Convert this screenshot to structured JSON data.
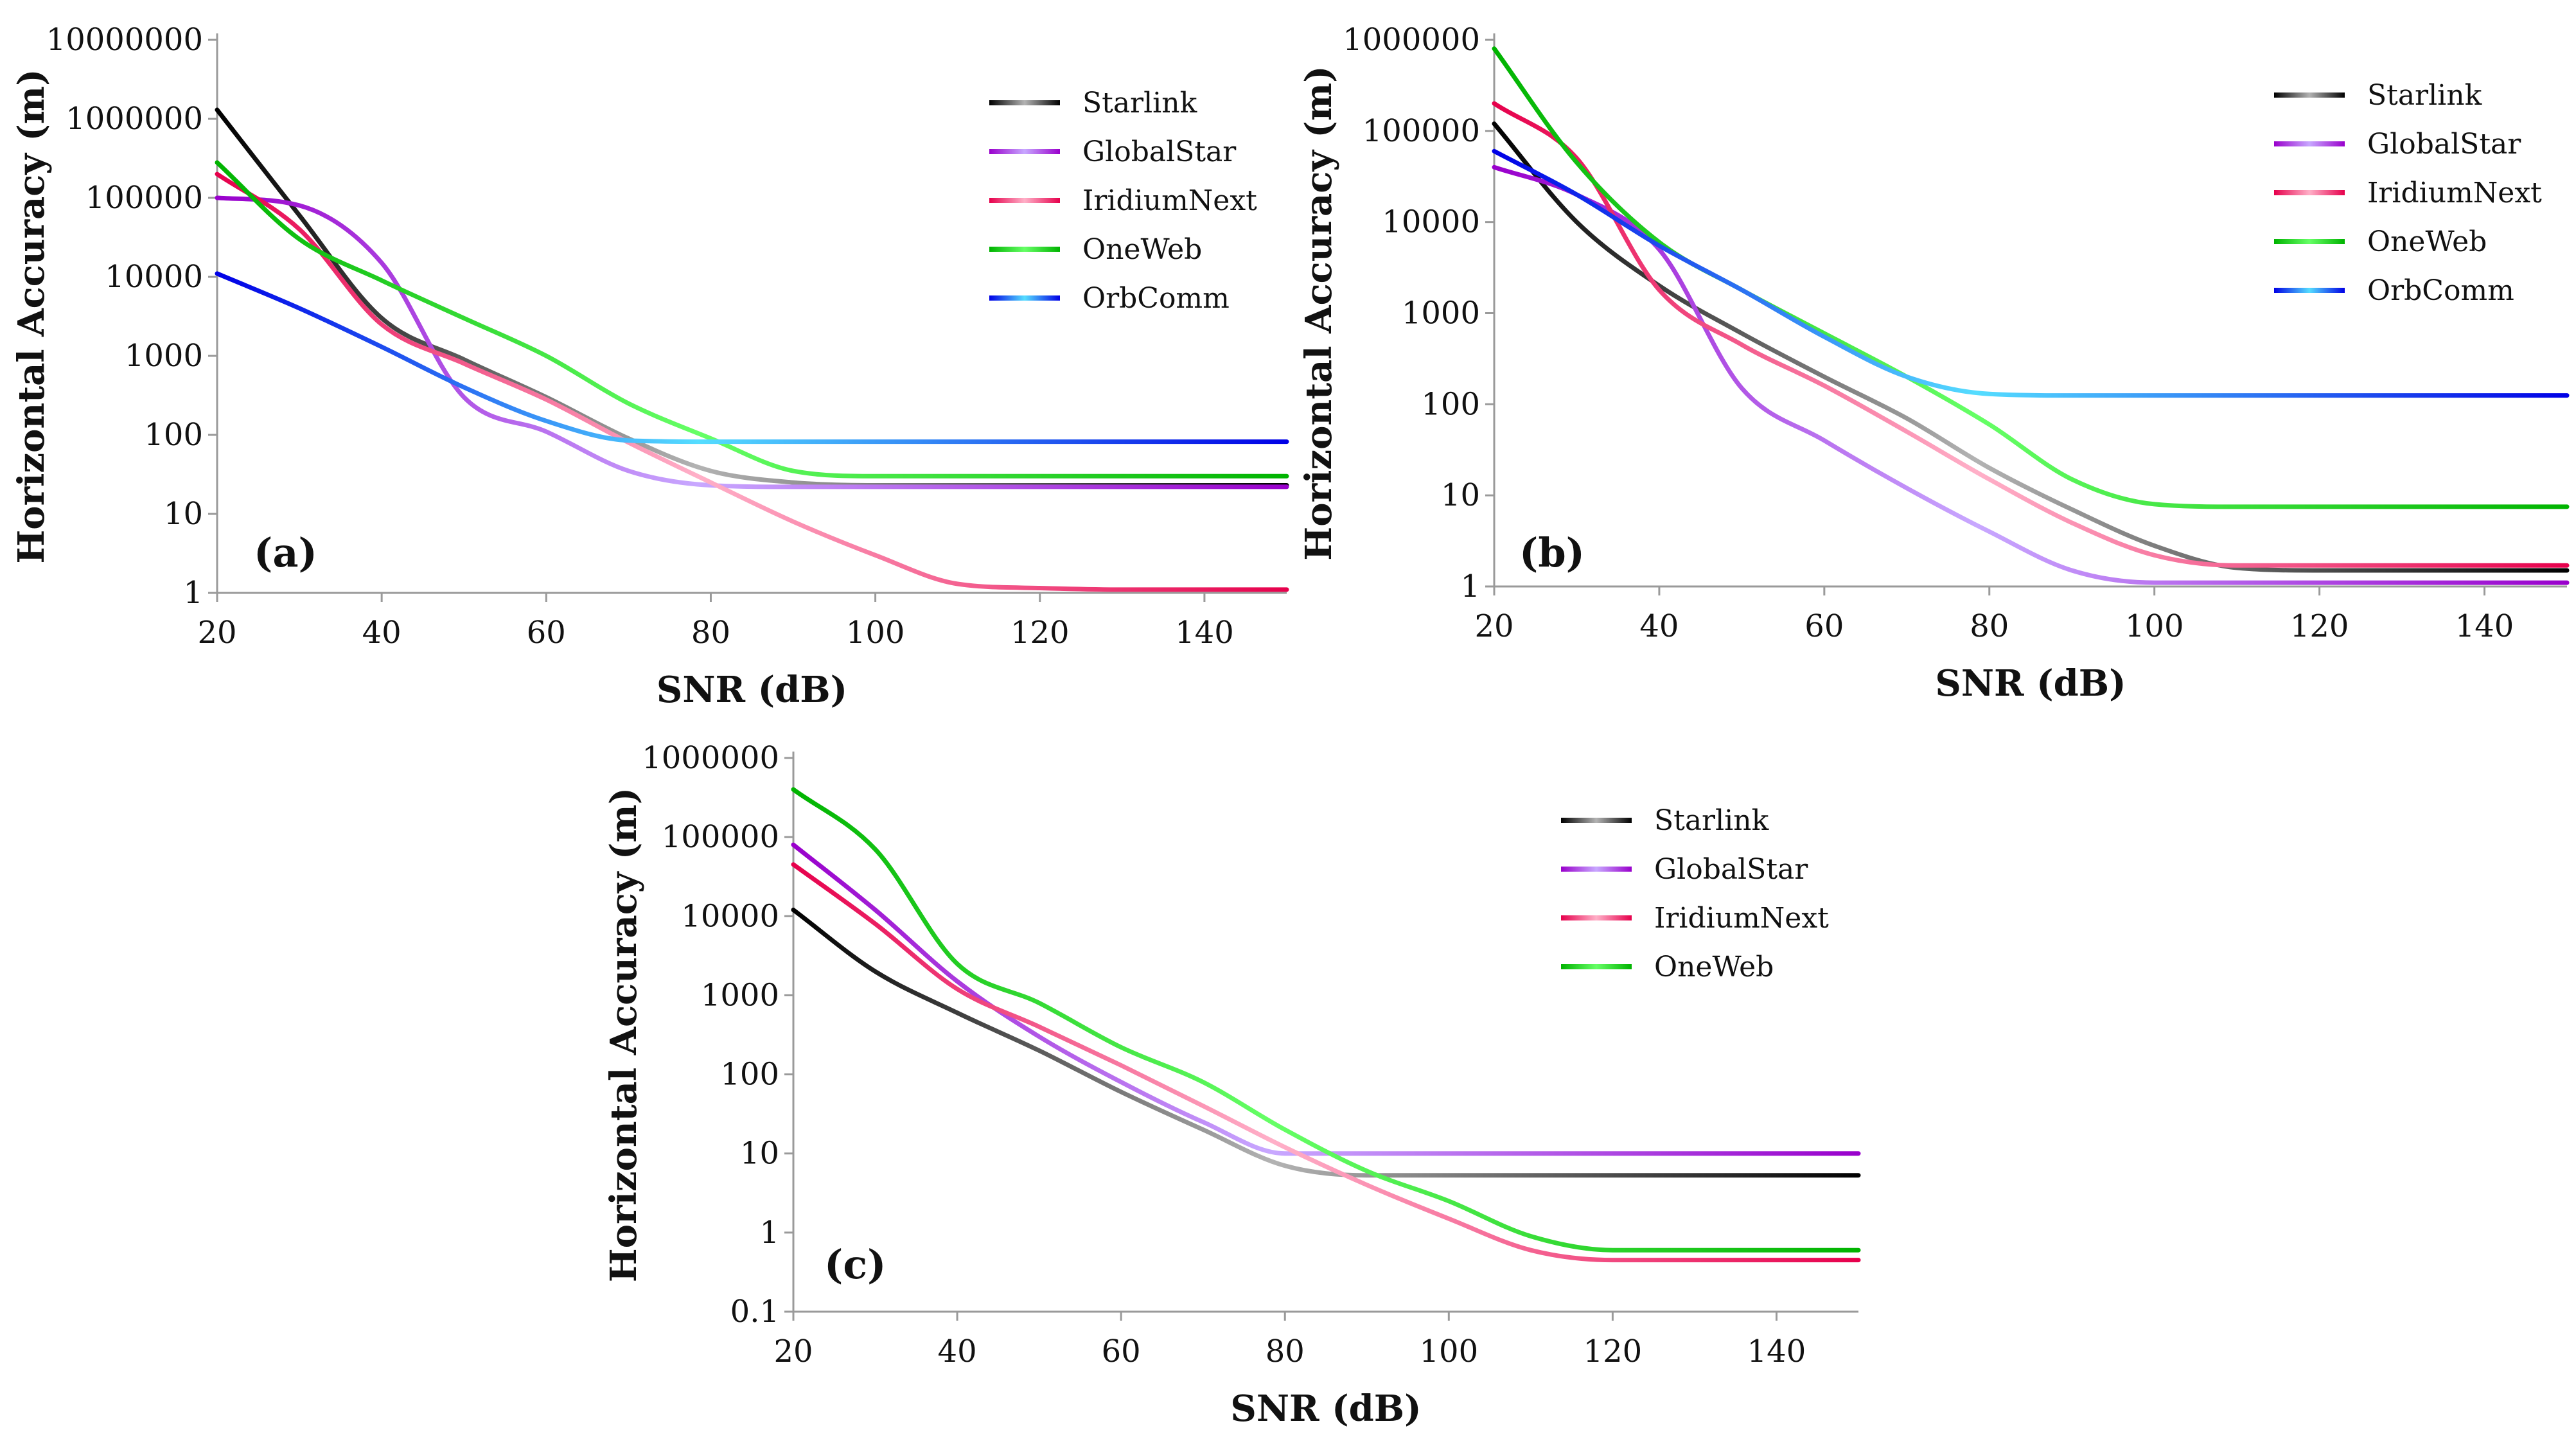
{
  "chart_data": [
    {
      "type": "line",
      "panel": "(a)",
      "xlabel": "SNR (dB)",
      "ylabel": "Horizontal Accuracy (m)",
      "yscale": "log",
      "xlim": [
        20,
        150
      ],
      "ylim": [
        1,
        10000000
      ],
      "xticks": [
        20,
        40,
        60,
        80,
        100,
        120,
        140
      ],
      "yticks": [
        1,
        10,
        100,
        1000,
        10000,
        100000,
        1000000,
        10000000
      ],
      "ytick_labels": [
        "1",
        "10",
        "100",
        "1000",
        "10000",
        "100000",
        "1000000",
        "10000000"
      ],
      "legend_position": "top-right",
      "x": [
        20,
        30,
        40,
        50,
        60,
        70,
        80,
        90,
        100,
        110,
        120,
        130,
        140,
        150
      ],
      "series": [
        {
          "name": "Starlink",
          "color_start": "#000000",
          "color_end": "#b3b3b3",
          "values": [
            1300000,
            60000,
            3000,
            900,
            300,
            90,
            35,
            25,
            23,
            23,
            23,
            23,
            23,
            23
          ]
        },
        {
          "name": "GlobalStar",
          "color_start": "#9900cc",
          "color_end": "#c8a8ff",
          "values": [
            100000,
            80000,
            15000,
            300,
            110,
            35,
            23,
            22,
            22,
            22,
            22,
            22,
            22,
            22
          ]
        },
        {
          "name": "IridiumNext",
          "color_start": "#e6004c",
          "color_end": "#ffb0c8",
          "values": [
            200000,
            40000,
            2500,
            800,
            280,
            80,
            25,
            8,
            3,
            1.3,
            1.15,
            1.1,
            1.1,
            1.1
          ]
        },
        {
          "name": "OneWeb",
          "color_start": "#00b300",
          "color_end": "#66ff66",
          "values": [
            280000,
            30000,
            9000,
            3000,
            1000,
            250,
            90,
            35,
            30,
            30,
            30,
            30,
            30,
            30
          ]
        },
        {
          "name": "OrbComm",
          "color_start": "#0000e6",
          "color_end": "#55ddff",
          "values": [
            11000,
            4000,
            1300,
            400,
            150,
            85,
            82,
            82,
            82,
            82,
            82,
            82,
            82,
            82
          ]
        }
      ]
    },
    {
      "type": "line",
      "panel": "(b)",
      "xlabel": "SNR (dB)",
      "ylabel": "Horizontal Accuracy (m)",
      "yscale": "log",
      "xlim": [
        20,
        150
      ],
      "ylim": [
        1,
        1000000
      ],
      "xticks": [
        20,
        40,
        60,
        80,
        100,
        120,
        140
      ],
      "yticks": [
        1,
        10,
        100,
        1000,
        10000,
        100000,
        1000000
      ],
      "ytick_labels": [
        "1",
        "10",
        "100",
        "1000",
        "10000",
        "100000",
        "1000000"
      ],
      "legend_position": "top-right",
      "x": [
        20,
        30,
        40,
        50,
        60,
        70,
        80,
        90,
        100,
        110,
        120,
        130,
        140,
        150
      ],
      "series": [
        {
          "name": "Starlink",
          "color_start": "#000000",
          "color_end": "#b3b3b3",
          "values": [
            120000,
            10000,
            2000,
            600,
            200,
            70,
            20,
            7,
            2.8,
            1.6,
            1.5,
            1.5,
            1.5,
            1.5
          ]
        },
        {
          "name": "GlobalStar",
          "color_start": "#9900cc",
          "color_end": "#c8a8ff",
          "values": [
            40000,
            20000,
            5000,
            150,
            40,
            12,
            4,
            1.5,
            1.1,
            1.1,
            1.1,
            1.1,
            1.1,
            1.1
          ]
        },
        {
          "name": "IridiumNext",
          "color_start": "#e6004c",
          "color_end": "#ffb0c8",
          "values": [
            200000,
            50000,
            1800,
            450,
            160,
            50,
            15,
            5,
            2.2,
            1.7,
            1.7,
            1.7,
            1.7,
            1.7
          ]
        },
        {
          "name": "OneWeb",
          "color_start": "#00b300",
          "color_end": "#66ff66",
          "values": [
            800000,
            45000,
            6000,
            1800,
            600,
            200,
            60,
            15,
            8,
            7.5,
            7.5,
            7.5,
            7.5,
            7.5
          ]
        },
        {
          "name": "OrbComm",
          "color_start": "#0000e6",
          "color_end": "#55ddff",
          "values": [
            60000,
            20000,
            5500,
            1800,
            550,
            200,
            130,
            125,
            125,
            125,
            125,
            125,
            125,
            125
          ]
        }
      ]
    },
    {
      "type": "line",
      "panel": "(c)",
      "xlabel": "SNR (dB)",
      "ylabel": "Horizontal Accuracy (m)",
      "yscale": "log",
      "xlim": [
        20,
        150
      ],
      "ylim": [
        0.1,
        1000000
      ],
      "xticks": [
        20,
        40,
        60,
        80,
        100,
        120,
        140
      ],
      "yticks": [
        0.1,
        1,
        10,
        100,
        1000,
        10000,
        100000,
        1000000
      ],
      "ytick_labels": [
        "0.1",
        "1",
        "10",
        "100",
        "1000",
        "10000",
        "100000",
        "1000000"
      ],
      "legend_position": "top-right",
      "x": [
        20,
        30,
        40,
        50,
        60,
        70,
        80,
        90,
        100,
        110,
        120,
        130,
        140,
        150
      ],
      "series": [
        {
          "name": "Starlink",
          "color_start": "#000000",
          "color_end": "#b3b3b3",
          "values": [
            12000,
            2000,
            600,
            200,
            60,
            20,
            7,
            5.3,
            5.3,
            5.3,
            5.3,
            5.3,
            5.3,
            5.3
          ]
        },
        {
          "name": "GlobalStar",
          "color_start": "#9900cc",
          "color_end": "#c8a8ff",
          "values": [
            80000,
            12000,
            1500,
            300,
            80,
            25,
            10,
            10,
            10,
            10,
            10,
            10,
            10,
            10
          ]
        },
        {
          "name": "IridiumNext",
          "color_start": "#e6004c",
          "color_end": "#ffb0c8",
          "values": [
            45000,
            8000,
            1200,
            400,
            130,
            40,
            12,
            4,
            1.5,
            0.6,
            0.45,
            0.45,
            0.45,
            0.45
          ]
        },
        {
          "name": "OneWeb",
          "color_start": "#00b300",
          "color_end": "#66ff66",
          "values": [
            400000,
            70000,
            2500,
            800,
            220,
            80,
            20,
            6,
            2.5,
            0.9,
            0.6,
            0.6,
            0.6,
            0.6
          ]
        }
      ]
    }
  ]
}
